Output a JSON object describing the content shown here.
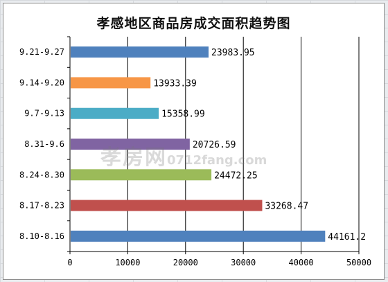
{
  "window": {
    "title": "孝感地区商品房成交面积趋势图"
  },
  "chart_data": {
    "type": "bar",
    "orientation": "horizontal",
    "title": "孝感地区商品房成交面积趋势图",
    "xlabel": "",
    "ylabel": "",
    "categories": [
      "9.21-9.27",
      "9.14-9.20",
      "9.7-9.13",
      "8.31-9.6",
      "8.24-8.30",
      "8.17-8.23",
      "8.10-8.16"
    ],
    "values": [
      23983.95,
      13933.39,
      15358.99,
      20726.59,
      24472.25,
      33268.47,
      44161.2
    ],
    "value_labels": [
      "23983.95",
      "13933.39",
      "15358.99",
      "20726.59",
      "24472.25",
      "33268.47",
      "44161.2"
    ],
    "colors": [
      "#4f81bd",
      "#f79646",
      "#4bacc6",
      "#8064a2",
      "#9bbb59",
      "#c0504d",
      "#4f81bd"
    ],
    "xlim": [
      0,
      50000
    ],
    "xticks": [
      0,
      10000,
      20000,
      30000,
      40000,
      50000
    ],
    "xtick_labels": [
      "0",
      "10000",
      "20000",
      "30000",
      "40000",
      "50000"
    ],
    "grid": true,
    "legend": "none"
  },
  "watermark": {
    "main": "孝房网",
    "sub": "0712fang.com"
  }
}
